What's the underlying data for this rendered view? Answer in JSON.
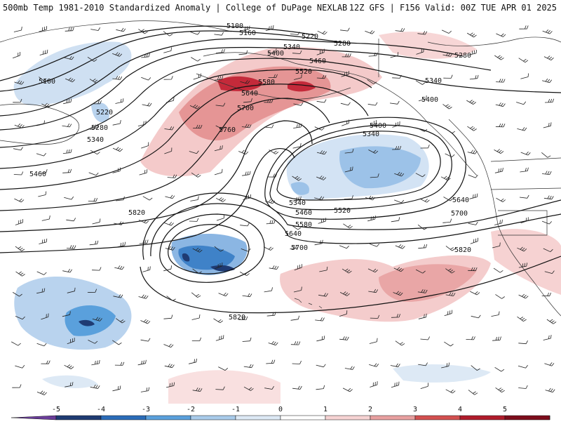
{
  "header": {
    "title": "500mb Temp 1981-2010 Standardized Anomaly | College of DuPage NEXLAB",
    "run_info": "12Z GFS | F156 Valid: 00Z TUE APR 01 2025"
  },
  "map": {
    "field": "500mb temperature standardized anomaly",
    "contour_field": "500mb height (dam x10)",
    "has_wind_barbs": true,
    "contour_labels": [
      "5100",
      "5160",
      "5220",
      "5280",
      "5340",
      "5400",
      "5460",
      "5520",
      "5580",
      "5640",
      "5700",
      "5760",
      "5820"
    ]
  },
  "colorbar": {
    "ticks": [
      "-5",
      "-4",
      "-3",
      "-2",
      "-1",
      "0",
      "1",
      "2",
      "3",
      "4",
      "5"
    ],
    "colors": [
      "#6a3d9a",
      "#1f3b73",
      "#2b6cb8",
      "#5aa0dc",
      "#a9cbea",
      "#dde9f5",
      "#ffffff",
      "#f6d3d3",
      "#e8a0a0",
      "#d35050",
      "#b01c2c",
      "#7d0d1c",
      "#f0c020"
    ]
  }
}
